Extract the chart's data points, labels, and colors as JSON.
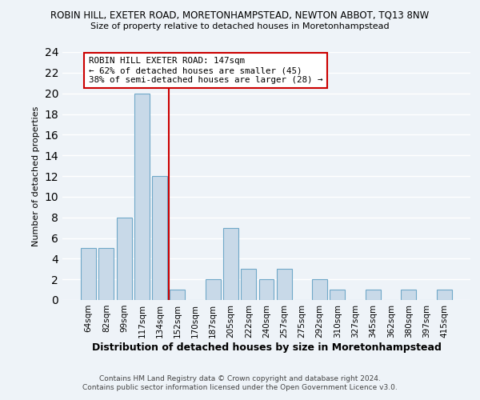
{
  "title_line1": "ROBIN HILL, EXETER ROAD, MORETONHAMPSTEAD, NEWTON ABBOT, TQ13 8NW",
  "title_line2": "Size of property relative to detached houses in Moretonhampstead",
  "xlabel": "Distribution of detached houses by size in Moretonhampstead",
  "ylabel": "Number of detached properties",
  "bin_labels": [
    "64sqm",
    "82sqm",
    "99sqm",
    "117sqm",
    "134sqm",
    "152sqm",
    "170sqm",
    "187sqm",
    "205sqm",
    "222sqm",
    "240sqm",
    "257sqm",
    "275sqm",
    "292sqm",
    "310sqm",
    "327sqm",
    "345sqm",
    "362sqm",
    "380sqm",
    "397sqm",
    "415sqm"
  ],
  "bar_values": [
    5,
    5,
    8,
    20,
    12,
    1,
    0,
    2,
    7,
    3,
    2,
    3,
    0,
    2,
    1,
    0,
    1,
    0,
    1,
    0,
    1
  ],
  "bar_color": "#c8d9e8",
  "bar_edge_color": "#6fa8c8",
  "vline_x_idx": 4,
  "vline_color": "#cc0000",
  "ylim": [
    0,
    24
  ],
  "yticks": [
    0,
    2,
    4,
    6,
    8,
    10,
    12,
    14,
    16,
    18,
    20,
    22,
    24
  ],
  "annotation_title": "ROBIN HILL EXETER ROAD: 147sqm",
  "annotation_line1": "← 62% of detached houses are smaller (45)",
  "annotation_line2": "38% of semi-detached houses are larger (28) →",
  "annotation_box_color": "#ffffff",
  "annotation_box_edge": "#cc0000",
  "footer_line1": "Contains HM Land Registry data © Crown copyright and database right 2024.",
  "footer_line2": "Contains public sector information licensed under the Open Government Licence v3.0.",
  "background_color": "#eef3f8",
  "grid_color": "#ffffff"
}
